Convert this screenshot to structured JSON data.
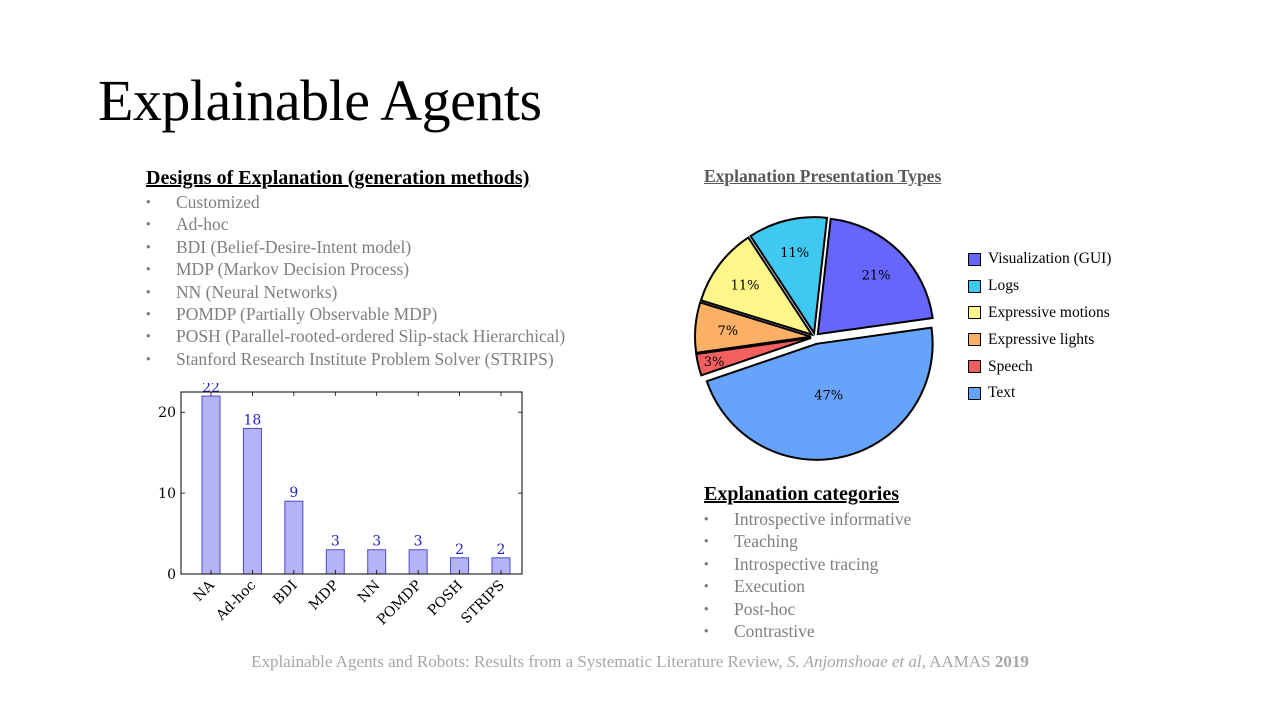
{
  "slide": {
    "title": "Explainable Agents"
  },
  "designs": {
    "heading": "Designs of Explanation  (generation  methods)",
    "items": [
      "Customized",
      "Ad-hoc",
      "BDI (Belief-Desire-Intent model)",
      "MDP (Markov Decision Process)",
      "NN (Neural Networks)",
      "POMDP (Partially Observable MDP)",
      "POSH (Parallel-rooted-ordered Slip-stack Hierarchical)",
      "Stanford Research Institute Problem Solver (STRIPS)"
    ]
  },
  "presentation": {
    "heading": "Explanation Presentation Types"
  },
  "categories": {
    "heading": "Explanation categories",
    "items": [
      "Introspective informative",
      "Teaching",
      "Introspective tracing",
      "Execution",
      "Post-hoc",
      "Contrastive"
    ]
  },
  "citation": {
    "text": "Explainable Agents and Robots: Results from a Systematic Literature Review, ",
    "authors": "S. Anjomshoae et al",
    "venue": ", AAMAS ",
    "year": "2019"
  },
  "chart_data": [
    {
      "type": "bar",
      "categories": [
        "NA",
        "Ad-hoc",
        "BDI",
        "MDP",
        "NN",
        "POMDP",
        "POSH",
        "STRIPS"
      ],
      "values": [
        22,
        18,
        9,
        3,
        3,
        3,
        2,
        2
      ],
      "yticks": [
        0,
        10,
        20
      ],
      "ylim": [
        0,
        22.5
      ],
      "title": "",
      "xlabel": "",
      "ylabel": "",
      "data_labels": true,
      "bar_fill": "#b3b3f5",
      "bar_stroke": "#4d4dcc",
      "label_color": "#2020c8"
    },
    {
      "type": "pie",
      "title": "Explanation Presentation Types",
      "labels": [
        "Visualization (GUI)",
        "Logs",
        "Expressive motions",
        "Expressive lights",
        "Speech",
        "Text"
      ],
      "values": [
        21,
        11,
        11,
        7,
        3,
        47
      ],
      "value_labels": [
        "21%",
        "11%",
        "11%",
        "7%",
        "3%",
        "47%"
      ],
      "colors": [
        "#6666ff",
        "#3fc8f0",
        "#fdf789",
        "#fbb066",
        "#f46060",
        "#66a3fb"
      ],
      "exploded": "Text",
      "legend": "right"
    }
  ]
}
